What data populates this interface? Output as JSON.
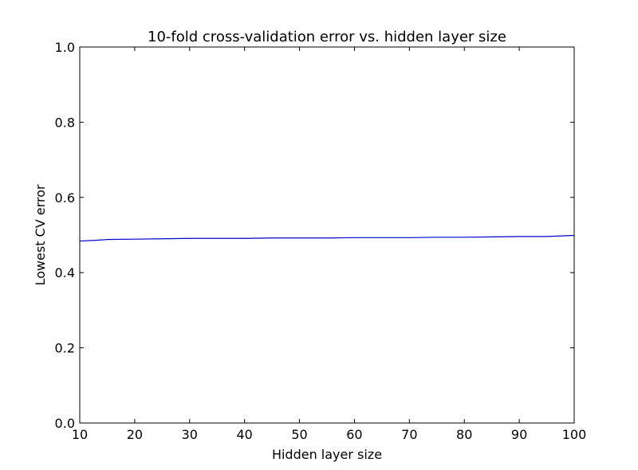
{
  "chart_data": {
    "type": "line",
    "title": "10-fold cross-validation error vs. hidden layer size",
    "xlabel": "Hidden layer size",
    "ylabel": "Lowest CV error",
    "xlim": [
      10,
      100
    ],
    "ylim": [
      0.0,
      1.0
    ],
    "xticks": [
      "10",
      "20",
      "30",
      "40",
      "50",
      "60",
      "70",
      "80",
      "90",
      "100"
    ],
    "yticks": [
      "0.0",
      "0.2",
      "0.4",
      "0.6",
      "0.8",
      "1.0"
    ],
    "grid": false,
    "line_color": "#0000cc",
    "series": [
      {
        "x": [
          10,
          13,
          15,
          20,
          25,
          30,
          35,
          40,
          45,
          50,
          55,
          60,
          65,
          70,
          75,
          80,
          85,
          90,
          95,
          100
        ],
        "y": [
          0.484,
          0.486,
          0.488,
          0.489,
          0.49,
          0.491,
          0.491,
          0.491,
          0.492,
          0.492,
          0.492,
          0.493,
          0.493,
          0.493,
          0.494,
          0.494,
          0.495,
          0.496,
          0.496,
          0.499
        ]
      }
    ]
  }
}
